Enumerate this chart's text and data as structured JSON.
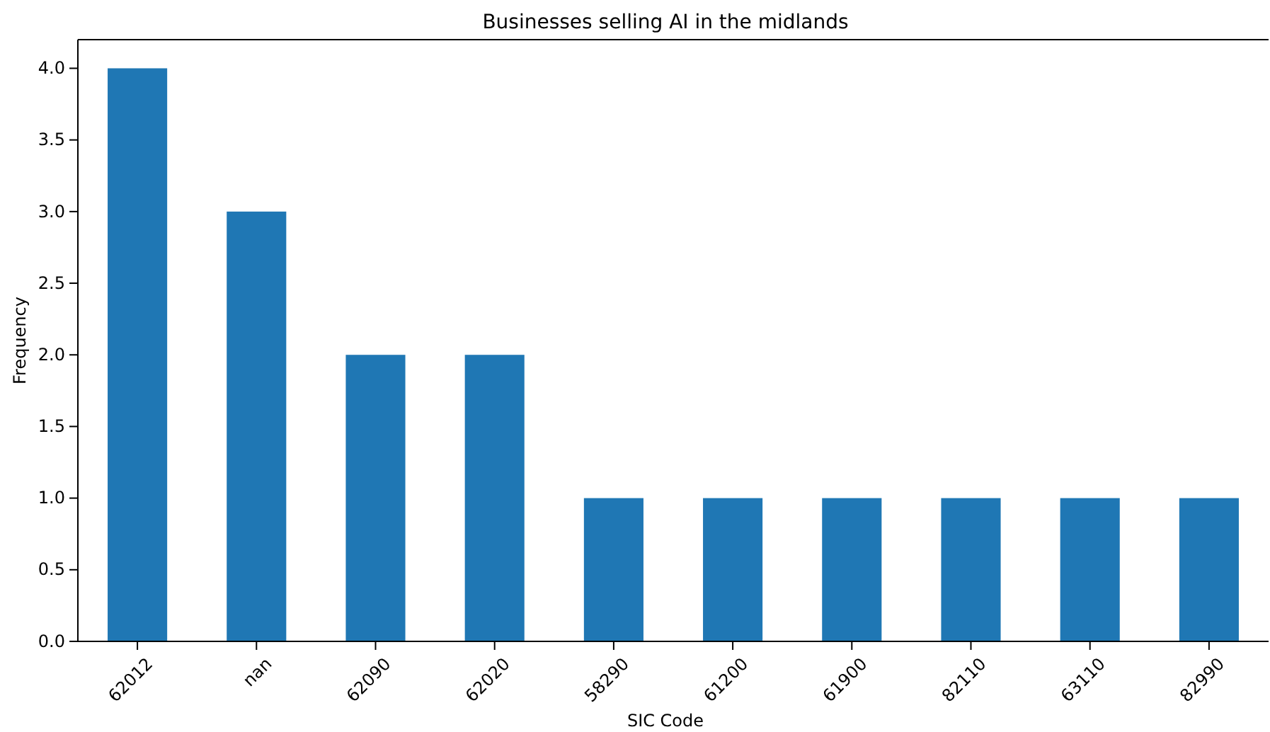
{
  "chart_data": {
    "type": "bar",
    "title": "Businesses selling AI in the midlands",
    "xlabel": "SIC Code",
    "ylabel": "Frequency",
    "categories": [
      "62012",
      "nan",
      "62090",
      "62020",
      "58290",
      "61200",
      "61900",
      "82110",
      "63110",
      "82990"
    ],
    "values": [
      4,
      3,
      2,
      2,
      1,
      1,
      1,
      1,
      1,
      1
    ],
    "color": "#1f77b4",
    "ylim": [
      0,
      4.2
    ],
    "yticks": [
      {
        "value": 0,
        "label": "0.0"
      },
      {
        "value": 0.5,
        "label": "0.5"
      },
      {
        "value": 1,
        "label": "1.0"
      },
      {
        "value": 1.5,
        "label": "1.5"
      },
      {
        "value": 2,
        "label": "2.0"
      },
      {
        "value": 2.5,
        "label": "2.5"
      },
      {
        "value": 3,
        "label": "3.0"
      },
      {
        "value": 3.5,
        "label": "3.5"
      },
      {
        "value": 4,
        "label": "4.0"
      }
    ],
    "grid": false
  }
}
